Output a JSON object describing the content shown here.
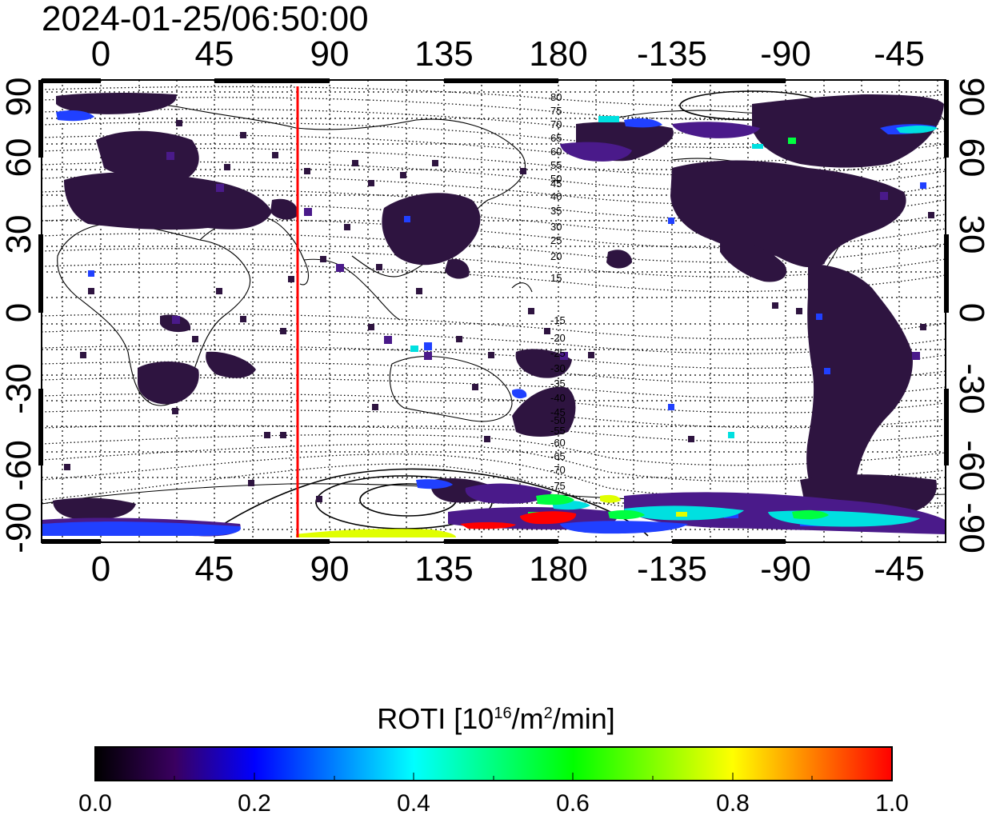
{
  "timestamp": "2024-01-25/06:50:00",
  "lon_ticks": [
    "0",
    "45",
    "90",
    "135",
    "180",
    "-135",
    "-90",
    "-45"
  ],
  "lat_ticks": [
    "90",
    "60",
    "30",
    "0",
    "-30",
    "-60",
    "-90"
  ],
  "contour_labels": [
    "80",
    "75",
    "70",
    "65",
    "60",
    "55",
    "50",
    "45",
    "40",
    "35",
    "30",
    "25",
    "20",
    "15",
    "-15",
    "-20",
    "-25",
    "-30",
    "-35",
    "-40",
    "-45",
    "-50",
    "-55",
    "-60",
    "-65",
    "-70",
    "-75"
  ],
  "marker_line": {
    "longitude": 78,
    "color": "#ff0000"
  },
  "colorbar": {
    "title_prefix": "ROTI  [10",
    "title_sup1": "16",
    "title_mid": "/m",
    "title_sup2": "2",
    "title_suffix": "/min]",
    "labels": [
      "0.0",
      "0.2",
      "0.4",
      "0.6",
      "0.8",
      "1.0"
    ],
    "range": [
      0.0,
      1.0
    ],
    "stops": [
      "#000000",
      "#3a0060",
      "#0000ff",
      "#00ffff",
      "#00ff00",
      "#ffff00",
      "#ff0000"
    ]
  },
  "colors": {
    "background": "#ffffff",
    "roti_low": "#2e1440",
    "roti_purple": "#4a1a8a",
    "roti_blue": "#2040ff",
    "roti_cyan": "#00e0e0",
    "roti_green": "#00ff40",
    "roti_yellow": "#e0ff00",
    "roti_red": "#ff0000"
  }
}
